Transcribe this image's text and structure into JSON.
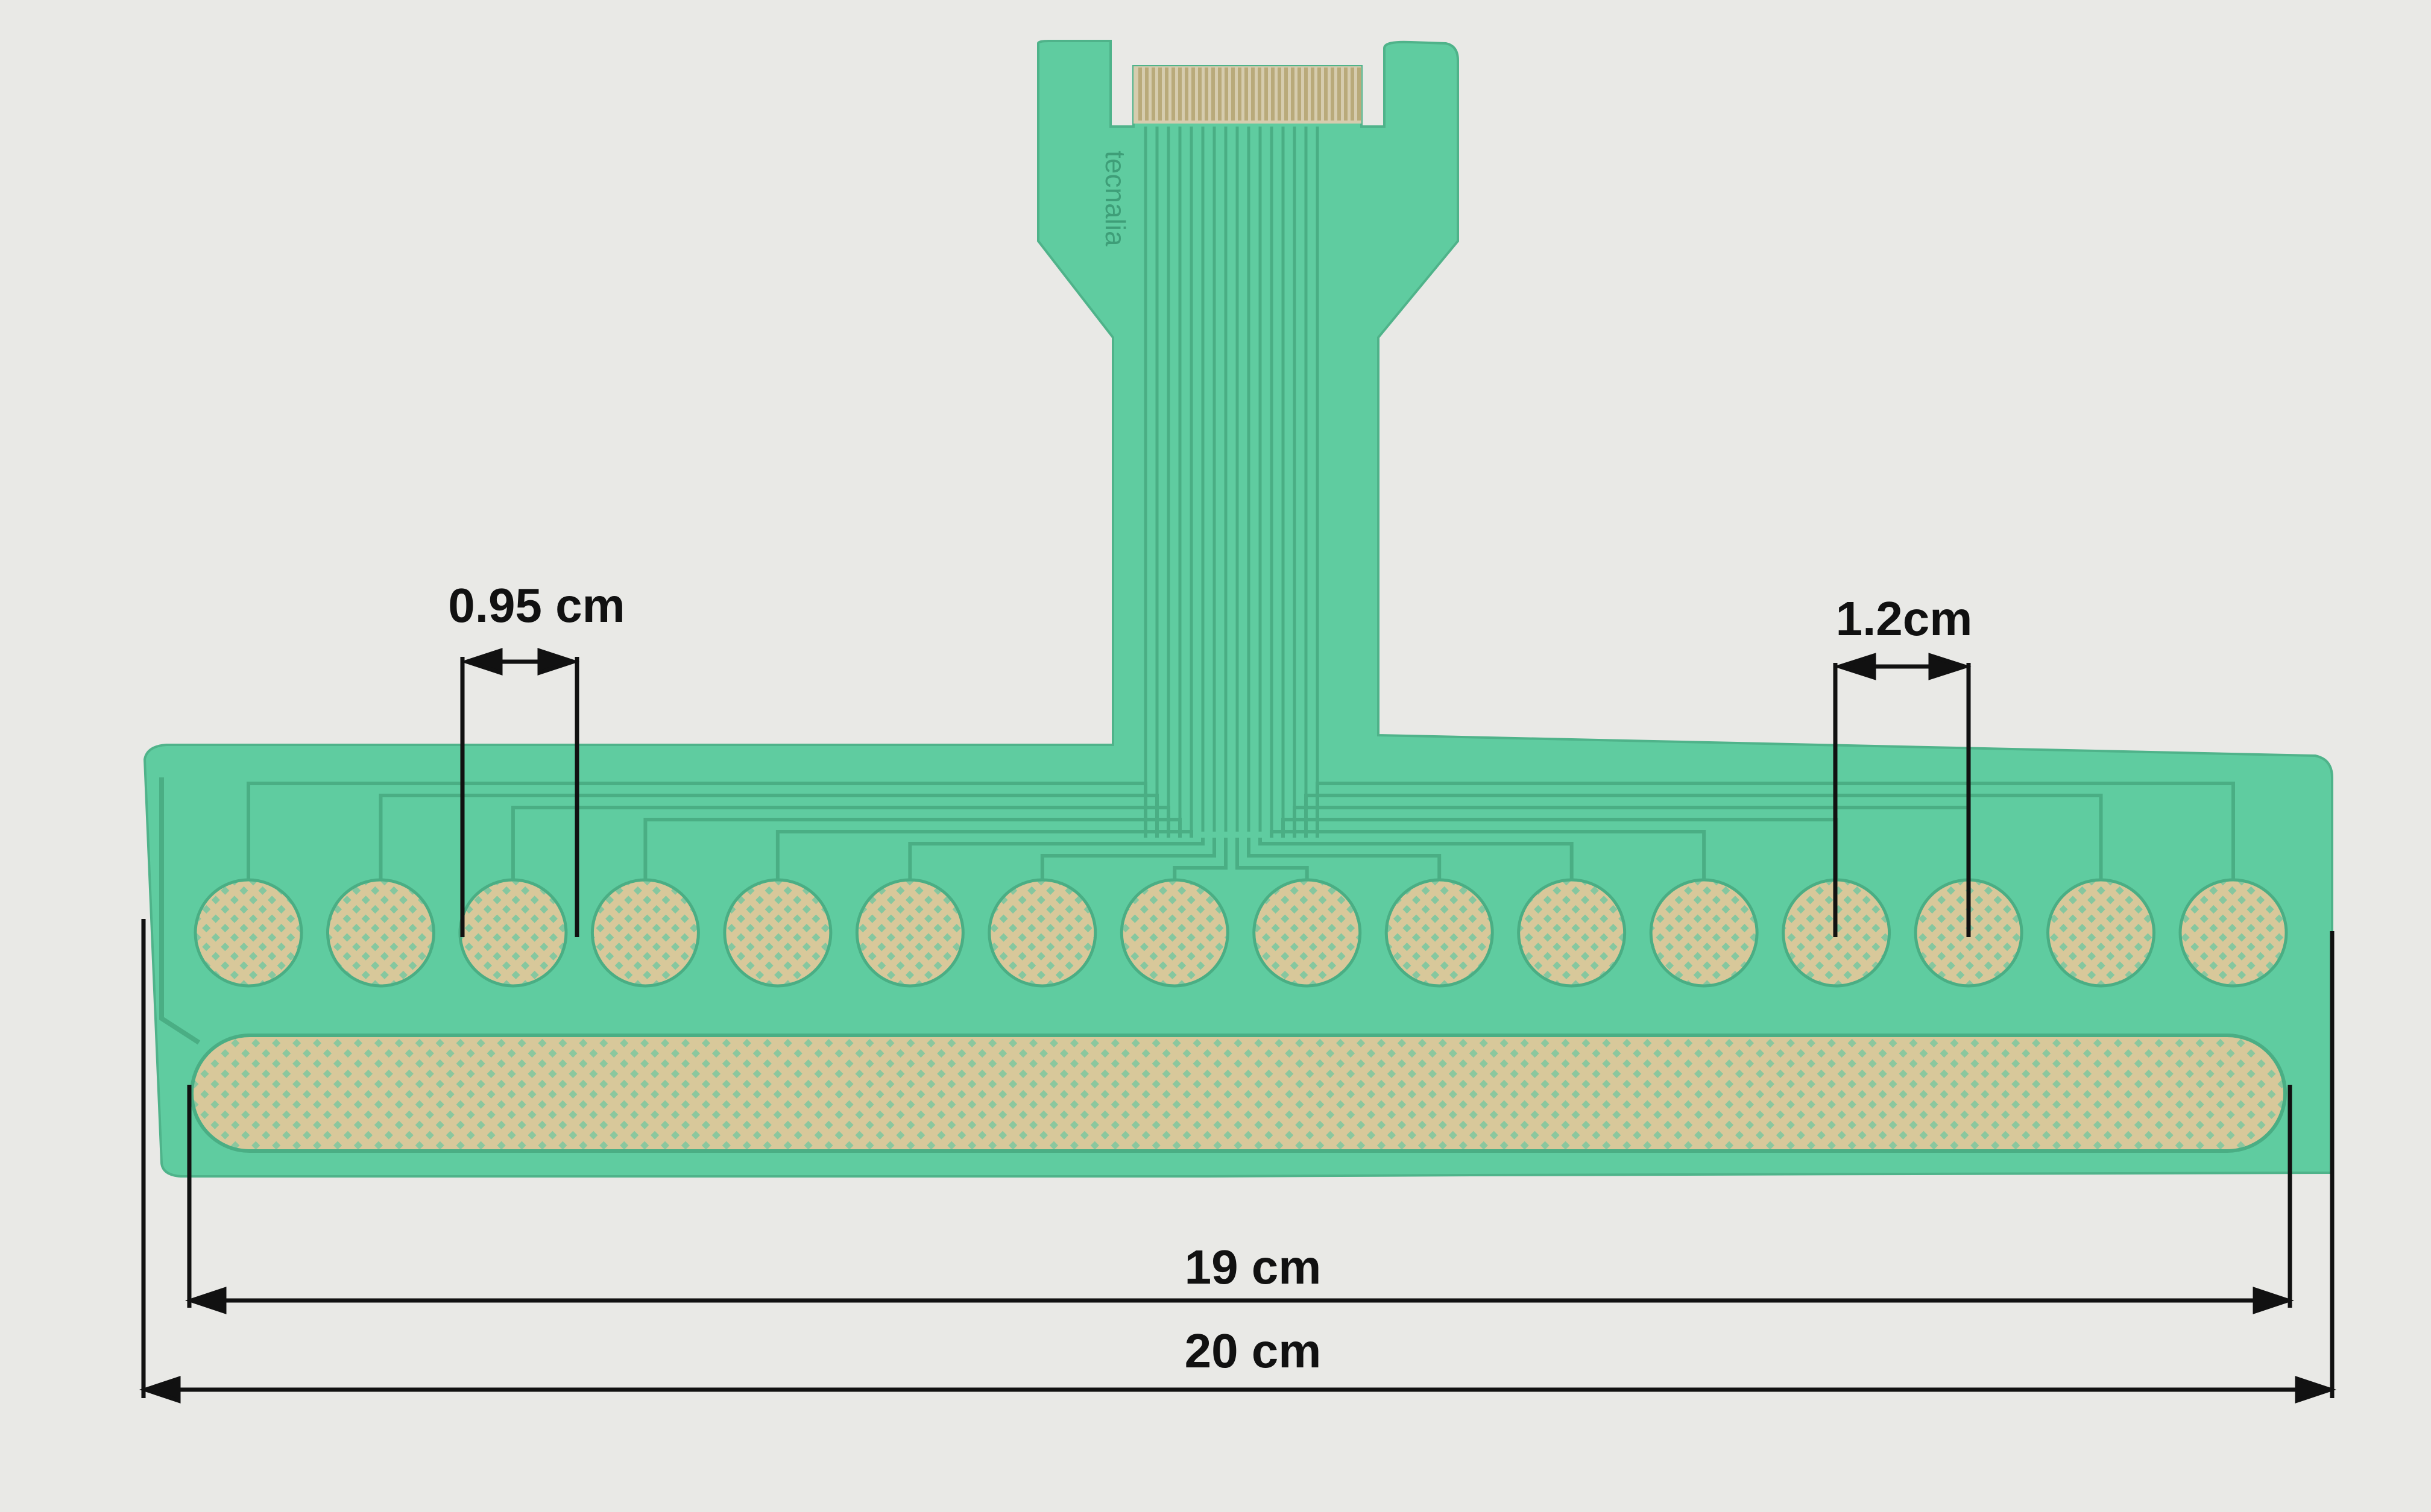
{
  "photo": {
    "brand_mark": "tecnalia",
    "colors": {
      "background": "#e9e9e6",
      "board": "#5fcca0",
      "board_edge": "#4fb38a",
      "trace": "#4aae84",
      "pad_gold": "#d8c89a",
      "pad_hole": "#6bc7a0",
      "annotation": "#111111"
    },
    "electrode_count": 16
  },
  "annotations": {
    "pad_diameter": "0.95 cm",
    "pad_pitch": "1.2cm",
    "ground_length": "19 cm",
    "board_length": "20 cm"
  }
}
